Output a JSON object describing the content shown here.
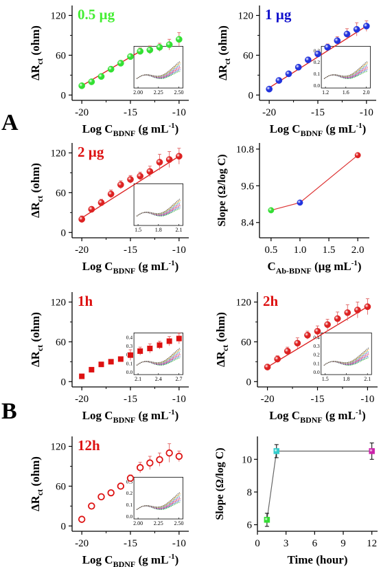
{
  "figure": {
    "panel_letters": [
      "A",
      "B"
    ]
  },
  "chart_data": [
    {
      "type": "scatter",
      "title": "0.5 µg",
      "title_color": "#44ee33",
      "xlabel": "Log C",
      "xlabel_sub": "BDNF",
      "xlabel_tail": " (g mL",
      "xlabel_sup": "-1",
      "xlabel_end": ")",
      "ylabel": "ΔR",
      "ylabel_sub": "ct",
      "ylabel_tail": " (ohm)",
      "xlim": [
        -21,
        -9
      ],
      "ylim": [
        -8,
        135
      ],
      "xticks": [
        -20,
        -15,
        -10
      ],
      "yticks": [
        0,
        60,
        120
      ],
      "marker": "sphere",
      "marker_color": "#33e033",
      "fit_color": "#dd2222",
      "x": [
        -20,
        -19,
        -18,
        -17,
        -16,
        -15,
        -14,
        -13,
        -12,
        -11,
        -10
      ],
      "y": [
        14,
        20,
        28,
        39,
        48,
        58,
        66,
        68,
        72,
        76,
        84
      ],
      "yerr": [
        3,
        3,
        3,
        4,
        4,
        4,
        5,
        6,
        6,
        8,
        10
      ],
      "fit": [
        [
          -20,
          14
        ],
        [
          -14,
          66
        ]
      ],
      "inset": {
        "xticks": [
          "2.00",
          "2.25",
          "2.50"
        ],
        "yticks": []
      }
    },
    {
      "type": "scatter",
      "title": "1 µg",
      "title_color": "#1111cc",
      "xlabel": "Log C",
      "xlabel_sub": "BDNF",
      "xlabel_tail": " (g mL",
      "xlabel_sup": "-1",
      "xlabel_end": ")",
      "ylabel": "ΔR",
      "ylabel_sub": "ct",
      "ylabel_tail": " (ohm)",
      "xlim": [
        -21,
        -9
      ],
      "ylim": [
        -8,
        135
      ],
      "xticks": [
        -20,
        -15,
        -10
      ],
      "yticks": [
        0,
        60,
        120
      ],
      "marker": "sphere",
      "marker_color": "#2233dd",
      "fit_color": "#dd2222",
      "x": [
        -20,
        -19,
        -18,
        -17,
        -16,
        -15,
        -14,
        -13,
        -12,
        -11,
        -10
      ],
      "y": [
        9,
        22,
        32,
        42,
        53,
        62,
        72,
        82,
        92,
        99,
        104
      ],
      "yerr": [
        3,
        3,
        3,
        3,
        4,
        4,
        5,
        6,
        8,
        10,
        8
      ],
      "fit": [
        [
          -20,
          11
        ],
        [
          -10,
          104
        ]
      ],
      "inset": {
        "xticks": [
          "1.2",
          "1.6",
          "2.0"
        ],
        "yticks": [
          "0.0",
          "0.1",
          "0.2",
          "0.3"
        ]
      }
    },
    {
      "type": "scatter",
      "title": "2 µg",
      "title_color": "#dd1111",
      "xlabel": "Log C",
      "xlabel_sub": "BDNF",
      "xlabel_tail": " (g mL",
      "xlabel_sup": "-1",
      "xlabel_end": ")",
      "ylabel": "ΔR",
      "ylabel_sub": "ct",
      "ylabel_tail": " (ohm)",
      "xlim": [
        -21,
        -9
      ],
      "ylim": [
        -8,
        135
      ],
      "xticks": [
        -20,
        -15,
        -10
      ],
      "yticks": [
        0,
        60,
        120
      ],
      "marker": "sphere",
      "marker_color": "#dd2222",
      "fit_color": "#dd2222",
      "x": [
        -20,
        -19,
        -18,
        -17,
        -16,
        -15,
        -14,
        -13,
        -12,
        -11,
        -10
      ],
      "y": [
        20,
        35,
        45,
        58,
        72,
        80,
        85,
        92,
        106,
        110,
        115
      ],
      "yerr": [
        5,
        4,
        5,
        6,
        6,
        6,
        6,
        8,
        12,
        12,
        12
      ],
      "fit": [
        [
          -20,
          22
        ],
        [
          -10,
          115
        ]
      ],
      "inset": {
        "xticks": [
          "1.5",
          "1.8",
          "2.1"
        ],
        "yticks": []
      }
    },
    {
      "type": "line",
      "title": "",
      "xlabel": "C",
      "xlabel_sub": "Ab-BDNF",
      "xlabel_tail": " (µg mL",
      "xlabel_sup": "-1",
      "xlabel_end": ")",
      "ylabel": "Slope (Ω/log C)",
      "xlim": [
        0.3,
        2.2
      ],
      "ylim": [
        7.9,
        11.0
      ],
      "xticks": [
        "0.5",
        "1.0",
        "1.5",
        "2.0"
      ],
      "yticks": [
        "8.4",
        "9.6",
        "10.8"
      ],
      "line_color": "#dd3333",
      "x": [
        0.5,
        1.0,
        2.0
      ],
      "y": [
        8.8,
        9.05,
        10.6
      ],
      "point_colors": [
        "#33dd33",
        "#2233dd",
        "#dd2222"
      ]
    },
    {
      "type": "scatter",
      "title": "1h",
      "title_color": "#dd1111",
      "xlabel": "Log C",
      "xlabel_sub": "BDNF",
      "xlabel_tail": " (g mL",
      "xlabel_sup": "-1",
      "xlabel_end": ")",
      "ylabel": "ΔR",
      "ylabel_sub": "ct",
      "ylabel_tail": " (ohm)",
      "xlim": [
        -21,
        -9
      ],
      "ylim": [
        -8,
        135
      ],
      "xticks": [
        -20,
        -15,
        -10
      ],
      "yticks": [
        0,
        60,
        120
      ],
      "marker": "square",
      "marker_color": "#dd1111",
      "x": [
        -20,
        -19,
        -18,
        -17,
        -16,
        -15,
        -14,
        -13,
        -12,
        -11,
        -10
      ],
      "y": [
        8,
        18,
        26,
        30,
        34,
        40,
        46,
        50,
        55,
        61,
        65
      ],
      "yerr": [
        1,
        2,
        2,
        2,
        3,
        8,
        6,
        7,
        6,
        7,
        8
      ],
      "inset": {
        "xticks": [
          "2.1",
          "2.4",
          "2.7"
        ],
        "yticks": [
          "0.0",
          "0.1",
          "0.2",
          "0.3",
          "0.4"
        ]
      }
    },
    {
      "type": "scatter",
      "title": "2h",
      "title_color": "#dd1111",
      "xlabel": "Log C",
      "xlabel_sub": "BDNF",
      "xlabel_tail": " (g mL",
      "xlabel_sup": "-1",
      "xlabel_end": ")",
      "ylabel": "ΔR",
      "ylabel_sub": "ct",
      "ylabel_tail": " (ohm)",
      "xlim": [
        -21,
        -9
      ],
      "ylim": [
        -8,
        135
      ],
      "xticks": [
        -20,
        -15,
        -10
      ],
      "yticks": [
        0,
        60,
        120
      ],
      "marker": "sphere",
      "marker_color": "#dd2222",
      "fit_color": "#dd2222",
      "x": [
        -20,
        -19,
        -18,
        -17,
        -16,
        -15,
        -14,
        -13,
        -12,
        -11,
        -10
      ],
      "y": [
        22,
        34,
        46,
        58,
        70,
        76,
        86,
        95,
        104,
        108,
        113
      ],
      "yerr": [
        4,
        5,
        6,
        8,
        6,
        8,
        8,
        10,
        12,
        12,
        12
      ],
      "fit": [
        [
          -20,
          22
        ],
        [
          -10,
          113
        ]
      ],
      "inset": {
        "xticks": [
          "1.5",
          "1.8",
          "2.1"
        ],
        "yticks": [
          "0.0",
          "0.1",
          "0.2",
          "0.3",
          "0.4"
        ]
      }
    },
    {
      "type": "scatter",
      "title": "12h",
      "title_color": "#dd1111",
      "xlabel": "Log C",
      "xlabel_sub": "BDNF",
      "xlabel_tail": " (g mL",
      "xlabel_sup": "-1",
      "xlabel_end": ")",
      "ylabel": "ΔR",
      "ylabel_sub": "ct",
      "ylabel_tail": " (ohm)",
      "xlim": [
        -21,
        -9
      ],
      "ylim": [
        -8,
        135
      ],
      "xticks": [
        -20,
        -15,
        -10
      ],
      "yticks": [
        0,
        60,
        120
      ],
      "marker": "hollow-circle",
      "marker_color": "#dd1111",
      "x": [
        -20,
        -19,
        -18,
        -17,
        -16,
        -15,
        -14,
        -13,
        -12,
        -11,
        -10
      ],
      "y": [
        10,
        30,
        44,
        50,
        60,
        72,
        88,
        95,
        100,
        110,
        105
      ],
      "yerr": [
        2,
        3,
        3,
        3,
        4,
        5,
        8,
        10,
        10,
        14,
        8
      ],
      "inset": {
        "xticks": [
          "2.00",
          "2.25",
          "2.50"
        ],
        "yticks": [
          "0.0",
          "0.1",
          "0.2",
          "0.3"
        ]
      }
    },
    {
      "type": "line",
      "title": "",
      "xlabel": "Time (hour)",
      "ylabel": "Slope (Ω/log C)",
      "xlim": [
        0,
        12.6
      ],
      "ylim": [
        5.6,
        11.4
      ],
      "xticks": [
        "0",
        "3",
        "6",
        "9",
        "12"
      ],
      "yticks": [
        "6",
        "8",
        "10"
      ],
      "line_color": "#666666",
      "x": [
        1,
        2,
        12
      ],
      "y": [
        6.3,
        10.5,
        10.5
      ],
      "yerr": [
        0.4,
        0.4,
        0.5
      ],
      "point_colors": [
        "#33dd33",
        "#33cccc",
        "#cc22aa"
      ]
    }
  ]
}
